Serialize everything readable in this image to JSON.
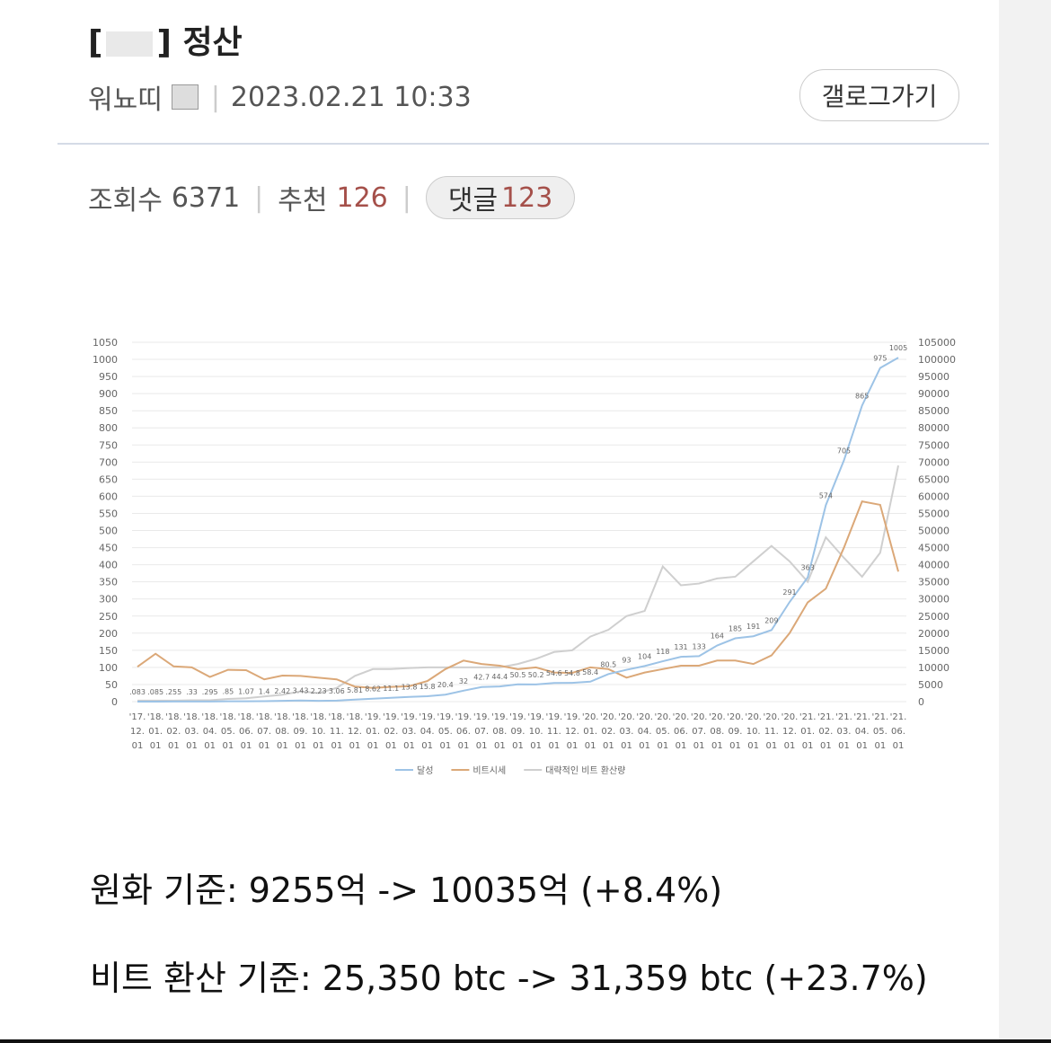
{
  "post": {
    "title": [
      "[",
      "] 정산"
    ],
    "author": "워뇨띠",
    "date": "2023.02.21 10:33",
    "gallog_button": "갤로그가기",
    "views_label": "조회수",
    "views": 6371,
    "recommend_label": "추천",
    "recommend": 126,
    "comments_label": "댓글",
    "comments": 123,
    "body": [
      "원화 기준: 9255억 -> 10035억 (+8.4%)",
      "비트 환산 기준: 25,350 btc -> 31,359 btc (+23.7%)"
    ]
  },
  "chart_data": {
    "type": "line",
    "categories": [
      [
        "'17.",
        "12.",
        "01"
      ],
      [
        "'18.",
        "01.",
        "01"
      ],
      [
        "'18.",
        "02.",
        "01"
      ],
      [
        "'18.",
        "03.",
        "01"
      ],
      [
        "'18.",
        "04.",
        "01"
      ],
      [
        "'18.",
        "05.",
        "01"
      ],
      [
        "'18.",
        "06.",
        "01"
      ],
      [
        "'18.",
        "07.",
        "01"
      ],
      [
        "'18.",
        "08.",
        "01"
      ],
      [
        "'18.",
        "09.",
        "01"
      ],
      [
        "'18.",
        "10.",
        "01"
      ],
      [
        "'18.",
        "11.",
        "01"
      ],
      [
        "'18.",
        "12.",
        "01"
      ],
      [
        "'19.",
        "01.",
        "01"
      ],
      [
        "'19.",
        "02.",
        "01"
      ],
      [
        "'19.",
        "03.",
        "01"
      ],
      [
        "'19.",
        "04.",
        "01"
      ],
      [
        "'19.",
        "05.",
        "01"
      ],
      [
        "'19.",
        "06.",
        "01"
      ],
      [
        "'19.",
        "07.",
        "01"
      ],
      [
        "'19.",
        "08.",
        "01"
      ],
      [
        "'19.",
        "09.",
        "01"
      ],
      [
        "'19.",
        "10.",
        "01"
      ],
      [
        "'19.",
        "11.",
        "01"
      ],
      [
        "'19.",
        "12.",
        "01"
      ],
      [
        "'20.",
        "01.",
        "01"
      ],
      [
        "'20.",
        "02.",
        "01"
      ],
      [
        "'20.",
        "03.",
        "01"
      ],
      [
        "'20.",
        "04.",
        "01"
      ],
      [
        "'20.",
        "05.",
        "01"
      ],
      [
        "'20.",
        "06.",
        "01"
      ],
      [
        "'20.",
        "07.",
        "01"
      ],
      [
        "'20.",
        "08.",
        "01"
      ],
      [
        "'20.",
        "09.",
        "01"
      ],
      [
        "'20.",
        "10.",
        "01"
      ],
      [
        "'20.",
        "11.",
        "01"
      ],
      [
        "'20.",
        "12.",
        "01"
      ],
      [
        "'21.",
        "01.",
        "01"
      ],
      [
        "'21.",
        "02.",
        "01"
      ],
      [
        "'21.",
        "03.",
        "01"
      ],
      [
        "'21.",
        "04.",
        "01"
      ],
      [
        "'21.",
        "05.",
        "01"
      ],
      [
        "'21.",
        "06.",
        "01"
      ]
    ],
    "series": [
      {
        "name": "달성",
        "color": "#9dc3e6",
        "values": [
          0.083,
          0.085,
          0.255,
          0.33,
          0.295,
          0.85,
          1.07,
          1.4,
          2.42,
          3.43,
          2.23,
          3.06,
          5.81,
          8.62,
          11.1,
          13.8,
          15.8,
          20.4,
          32,
          42.7,
          44.4,
          50.5,
          50.2,
          54.6,
          54.8,
          58.4,
          80.5,
          93,
          104,
          118,
          131,
          133,
          164,
          185,
          191,
          209,
          291,
          363,
          574,
          705,
          865,
          975,
          1005
        ],
        "value_labels": [
          ".083",
          ".085",
          ".255",
          ".33",
          ".295",
          ".85",
          "1.07",
          "1.4",
          "2.42",
          "3.43",
          "2.23",
          "3.06",
          "5.81",
          "8.62",
          "11.1",
          "13.8",
          "15.8",
          "20.4",
          "32",
          "42.7",
          "44.4",
          "50.5",
          "50.2",
          "54.6",
          "54.8",
          "58.4",
          "80.5",
          "93",
          "104",
          "118",
          "131",
          "133",
          "164",
          "185",
          "191",
          "209",
          "291",
          "363",
          "574",
          "705",
          "865",
          "975",
          "1005"
        ]
      },
      {
        "name": "비트시세",
        "color": "#dba878",
        "axis": "y2",
        "values": [
          10200,
          14000,
          10300,
          10000,
          7200,
          9300,
          9200,
          6500,
          7600,
          7500,
          7000,
          6500,
          4400,
          4000,
          4300,
          4500,
          6000,
          9500,
          12000,
          11000,
          10500,
          9500,
          10000,
          8500,
          8400,
          10000,
          9500,
          7000,
          8500,
          9500,
          10500,
          10500,
          12000,
          12000,
          11000,
          13500,
          20000,
          29000,
          33000,
          45000,
          58500,
          57500,
          38000
        ]
      },
      {
        "name": "대략적인 비트 환산량",
        "color": "#cfcfcf",
        "axis": "y2",
        "values": [
          300,
          300,
          300,
          400,
          400,
          800,
          1000,
          1500,
          2000,
          3000,
          2500,
          4000,
          7500,
          9500,
          9500,
          9800,
          10000,
          10000,
          10000,
          10000,
          10000,
          11000,
          12500,
          14500,
          15000,
          19000,
          21000,
          25000,
          26500,
          39500,
          34000,
          34500,
          36000,
          36500,
          41000,
          45500,
          41000,
          35000,
          48000,
          42000,
          36500,
          43500,
          69000
        ]
      }
    ],
    "ylim": [
      0,
      1050
    ],
    "yticks": [
      0,
      50,
      100,
      150,
      200,
      250,
      300,
      350,
      400,
      450,
      500,
      550,
      600,
      650,
      700,
      750,
      800,
      850,
      900,
      950,
      1000,
      1050
    ],
    "y2lim": [
      0,
      105000
    ],
    "y2ticks": [
      0,
      5000,
      10000,
      15000,
      20000,
      25000,
      30000,
      35000,
      40000,
      45000,
      50000,
      55000,
      60000,
      65000,
      70000,
      75000,
      80000,
      85000,
      90000,
      95000,
      100000,
      105000
    ],
    "grid": true,
    "legend": "bottom"
  }
}
